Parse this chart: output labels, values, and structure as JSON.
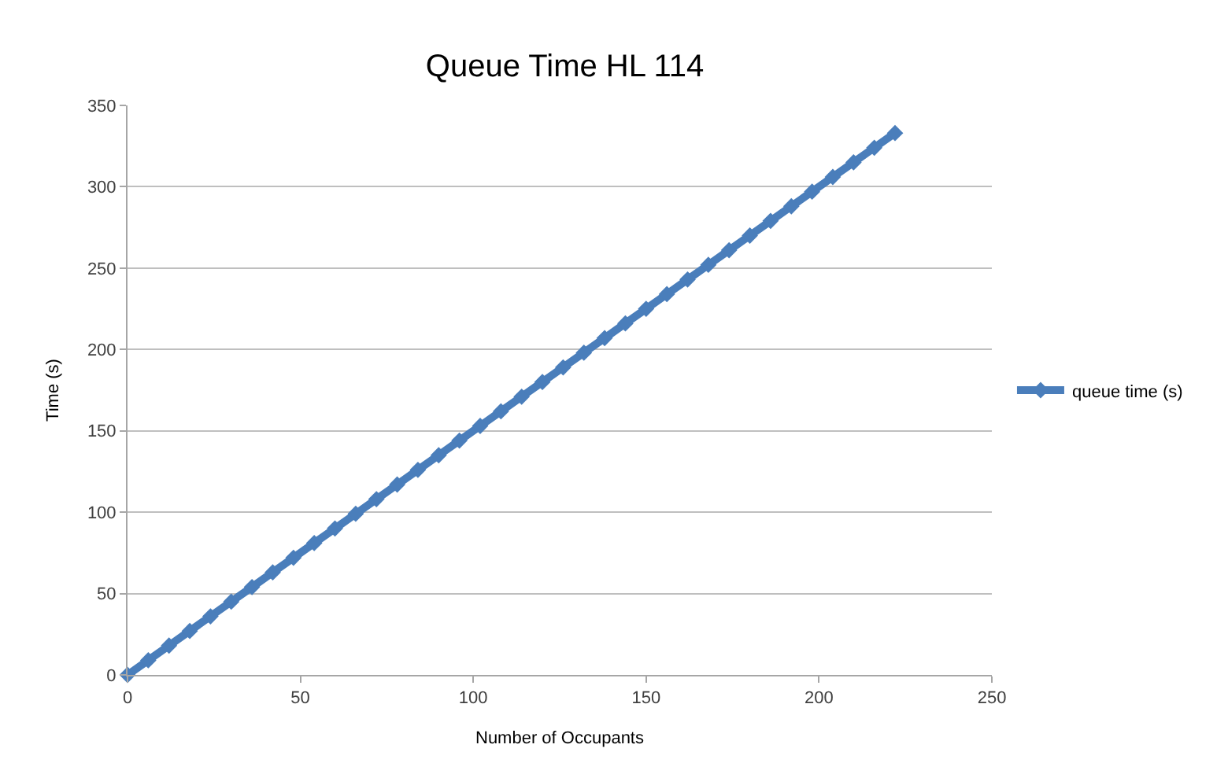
{
  "chart_data": {
    "type": "line",
    "title": "Queue Time HL 114",
    "xlabel": "Number of Occupants",
    "ylabel": "Time (s)",
    "x": [
      0,
      6,
      12,
      18,
      24,
      30,
      36,
      42,
      48,
      54,
      60,
      66,
      72,
      78,
      84,
      90,
      96,
      102,
      108,
      114,
      120,
      126,
      132,
      138,
      144,
      150,
      156,
      162,
      168,
      174,
      180,
      186,
      192,
      198,
      204,
      210,
      216,
      222
    ],
    "series": [
      {
        "name": "queue time (s)",
        "color": "#4a7ebb",
        "values": [
          0,
          9,
          18,
          27,
          36,
          45,
          54,
          63,
          72,
          81,
          90,
          99,
          108,
          117,
          126,
          135,
          144,
          153,
          162,
          171,
          180,
          189,
          198,
          207,
          216,
          225,
          234,
          243,
          252,
          261,
          270,
          279,
          288,
          297,
          306,
          315,
          324,
          333
        ]
      }
    ],
    "xlim": [
      0,
      250
    ],
    "xticks": [
      0,
      50,
      100,
      150,
      200,
      250
    ],
    "ylim": [
      0,
      350
    ],
    "yticks": [
      0,
      50,
      100,
      150,
      200,
      250,
      300,
      350
    ],
    "grid": "y",
    "legend": "right",
    "marker": "diamond",
    "line_style": "solid"
  }
}
